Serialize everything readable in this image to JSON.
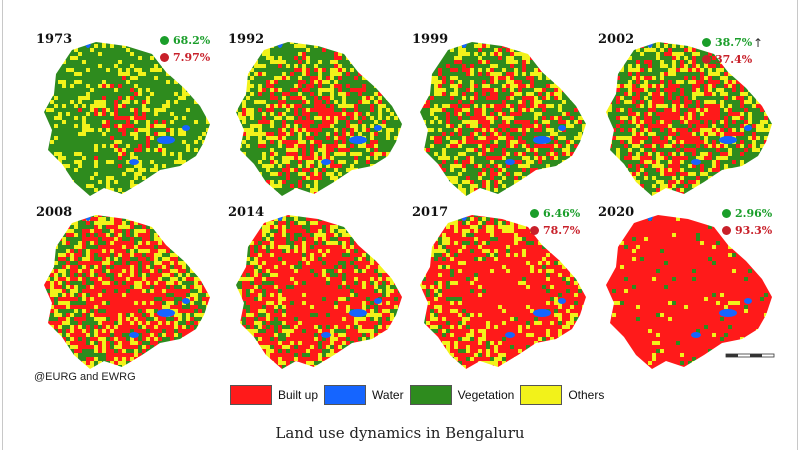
{
  "colors": {
    "built_up": "#ff1a1a",
    "water": "#1565ff",
    "vegetation": "#2e8b1e",
    "others": "#f2f21a",
    "stat_green": "#1a9e2a",
    "stat_red": "#c8202a"
  },
  "panels": [
    {
      "year": "1973",
      "stats": [
        "68.2%",
        "7.97%"
      ],
      "mix": {
        "built_up": 0.08,
        "vegetation": 0.68,
        "others": 0.22
      }
    },
    {
      "year": "1992",
      "stats": [],
      "mix": {
        "built_up": 0.3,
        "vegetation": 0.45,
        "others": 0.24
      }
    },
    {
      "year": "1999",
      "stats": [],
      "mix": {
        "built_up": 0.35,
        "vegetation": 0.42,
        "others": 0.22
      }
    },
    {
      "year": "2002",
      "stats": [
        "38.7%",
        "37.4%"
      ],
      "mix": {
        "built_up": 0.374,
        "vegetation": 0.387,
        "others": 0.23
      }
    },
    {
      "year": "2008",
      "stats": [],
      "mix": {
        "built_up": 0.55,
        "vegetation": 0.22,
        "others": 0.22
      }
    },
    {
      "year": "2014",
      "stats": [],
      "mix": {
        "built_up": 0.68,
        "vegetation": 0.14,
        "others": 0.17
      }
    },
    {
      "year": "2017",
      "stats": [
        "6.46%",
        "78.7%"
      ],
      "mix": {
        "built_up": 0.787,
        "vegetation": 0.065,
        "others": 0.14
      }
    },
    {
      "year": "2020",
      "stats": [
        "2.96%",
        "93.3%"
      ],
      "mix": {
        "built_up": 0.933,
        "vegetation": 0.03,
        "others": 0.03
      }
    }
  ],
  "legend": [
    {
      "label": "Built up",
      "color": "#ff1a1a"
    },
    {
      "label": "Water",
      "color": "#1565ff"
    },
    {
      "label": "Vegetation",
      "color": "#2e8b1e"
    },
    {
      "label": "Others",
      "color": "#f2f21a"
    }
  ],
  "credit": "@EURG and EWRG",
  "caption": "Land use dynamics in Bengaluru"
}
